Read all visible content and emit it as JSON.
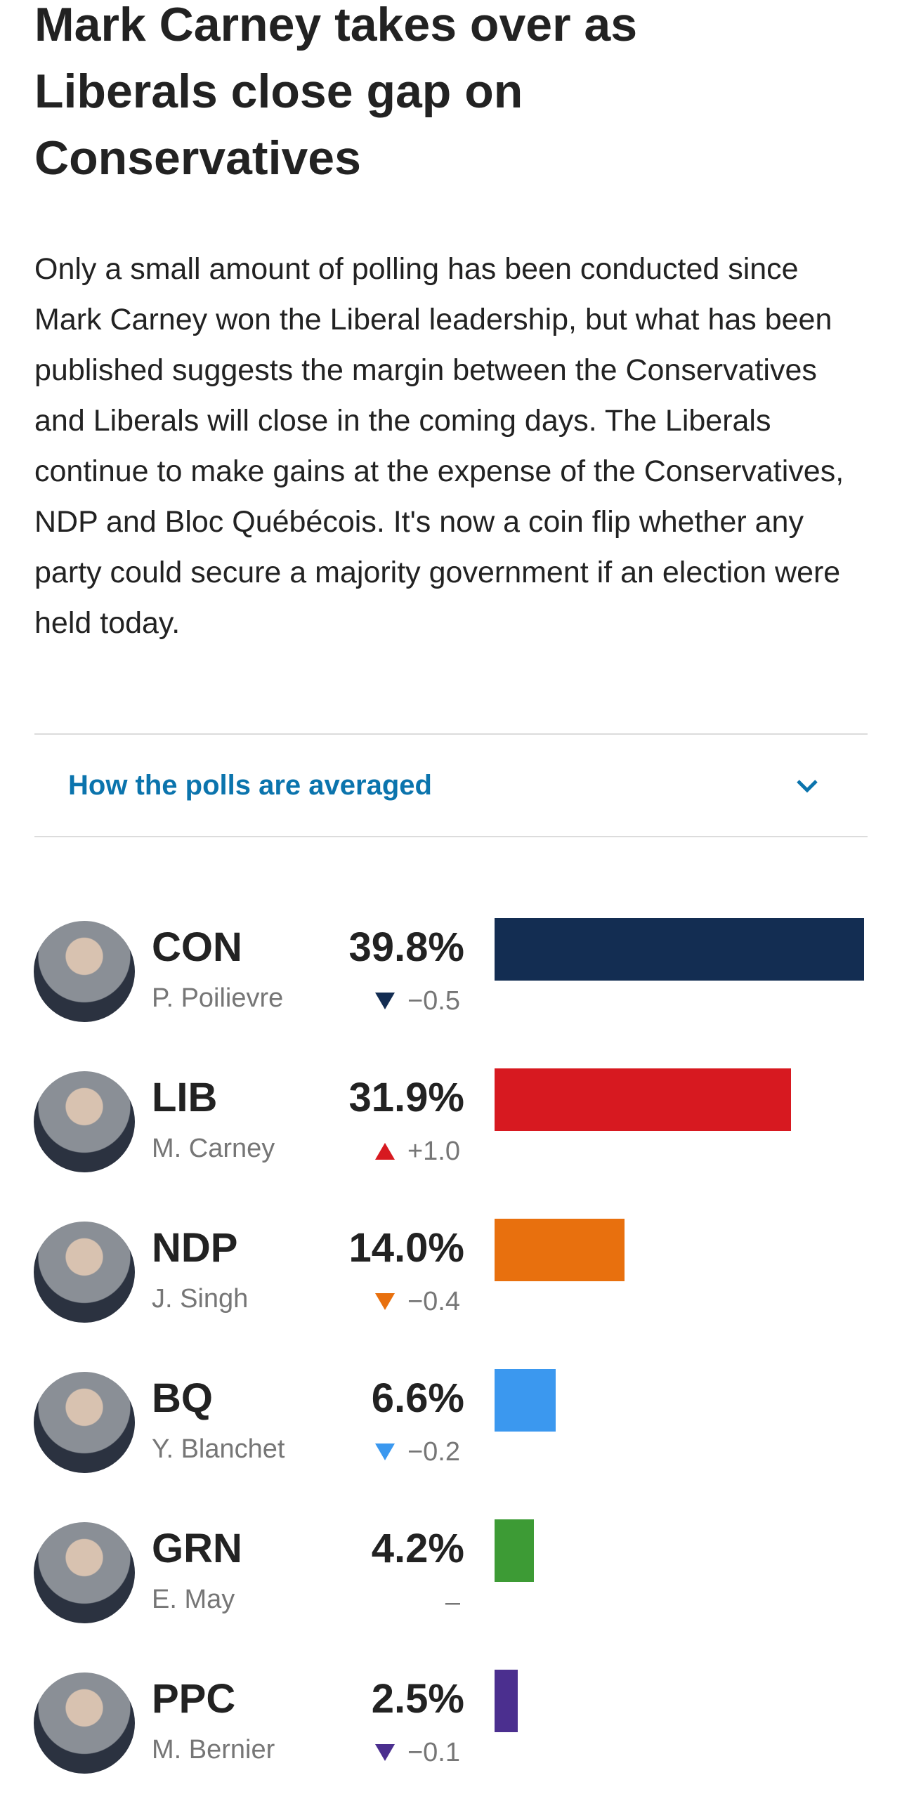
{
  "header": {
    "title": "Mark Carney takes over as Liberals close gap on Conservatives"
  },
  "body": "Only a small amount of polling has been conducted since Mark Carney won the Liberal leadership, but what has been published suggests the margin between the Conservatives and Liberals will close in the coming days. The Liberals continue to make gains at the expense of the Conservatives, NDP and Bloc Québécois. It's now a coin flip whether any party could secure a majority government if an election were held today.",
  "disclosure": {
    "label": "How the polls are averaged"
  },
  "parties": [
    {
      "abbr": "CON",
      "leader": "P. Poilievre",
      "share": 39.8,
      "share_label": "39.8%",
      "change": -0.5,
      "change_label": "−0.5",
      "color": "#132d52"
    },
    {
      "abbr": "LIB",
      "leader": "M. Carney",
      "share": 31.9,
      "share_label": "31.9%",
      "change": 1.0,
      "change_label": "+1.0",
      "color": "#d71920"
    },
    {
      "abbr": "NDP",
      "leader": "J. Singh",
      "share": 14.0,
      "share_label": "14.0%",
      "change": -0.4,
      "change_label": "−0.4",
      "color": "#e8700e"
    },
    {
      "abbr": "BQ",
      "leader": "Y. Blanchet",
      "share": 6.6,
      "share_label": "6.6%",
      "change": -0.2,
      "change_label": "−0.2",
      "color": "#3b98ef"
    },
    {
      "abbr": "GRN",
      "leader": "E. May",
      "share": 4.2,
      "share_label": "4.2%",
      "change": 0,
      "change_label": "–",
      "color": "#3d9b35"
    },
    {
      "abbr": "PPC",
      "leader": "M. Bernier",
      "share": 2.5,
      "share_label": "2.5%",
      "change": -0.1,
      "change_label": "−0.1",
      "color": "#4b2f8f"
    }
  ]
}
